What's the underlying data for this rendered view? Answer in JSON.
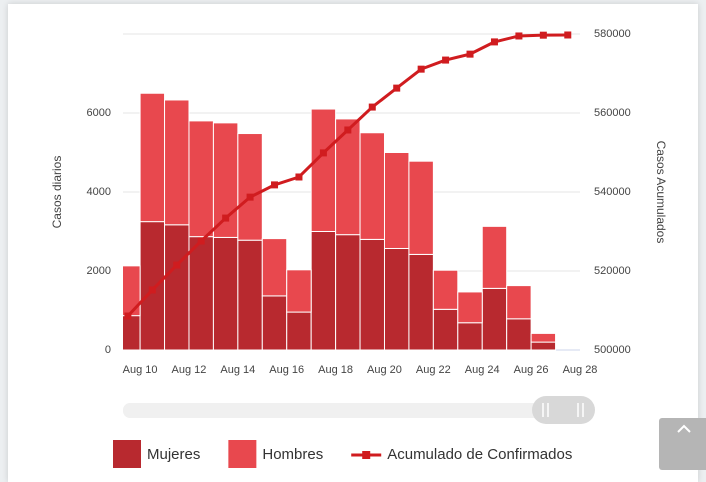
{
  "chart_data": {
    "type": "bar",
    "stacked": true,
    "ylabel": "Casos diarios",
    "y2label": "Casos Acumulados",
    "x": [
      9,
      10,
      11,
      12,
      13,
      14,
      15,
      16,
      17,
      18,
      19,
      20,
      21,
      22,
      23,
      24,
      25,
      26,
      27
    ],
    "xlim": [
      9.3,
      28
    ],
    "xticks": [
      {
        "value": 10,
        "label": "Aug 10"
      },
      {
        "value": 12,
        "label": "Aug 12"
      },
      {
        "value": 14,
        "label": "Aug 14"
      },
      {
        "value": 16,
        "label": "Aug 16"
      },
      {
        "value": 18,
        "label": "Aug 18"
      },
      {
        "value": 20,
        "label": "Aug 20"
      },
      {
        "value": 22,
        "label": "Aug 22"
      },
      {
        "value": 24,
        "label": "Aug 24"
      },
      {
        "value": 26,
        "label": "Aug 26"
      },
      {
        "value": 28,
        "label": "Aug 28"
      }
    ],
    "ylim": [
      0,
      8000
    ],
    "yticks": [
      0,
      2000,
      4000,
      6000
    ],
    "y2lim": [
      500000,
      580000
    ],
    "y2ticks": [
      500000,
      520000,
      540000,
      560000,
      580000
    ],
    "grid": true,
    "series": [
      {
        "name": "Mujeres",
        "type": "bar",
        "color": "#b8292f",
        "values": [
          870,
          3250,
          3170,
          2870,
          2850,
          2780,
          1370,
          960,
          3000,
          2920,
          2800,
          2570,
          2420,
          1030,
          690,
          1560,
          790,
          200,
          null
        ]
      },
      {
        "name": "Hombres",
        "type": "bar",
        "color": "#e8484e",
        "values": [
          1260,
          3250,
          3160,
          2930,
          2900,
          2700,
          1450,
          1070,
          3100,
          2930,
          2700,
          2430,
          2360,
          990,
          780,
          1570,
          840,
          220,
          null
        ]
      },
      {
        "name": "Acumulado de Confirmados",
        "type": "line",
        "axis": "y2",
        "color": "#d01c1f",
        "values": [
          508600,
          515200,
          521500,
          527600,
          533400,
          538700,
          541800,
          543800,
          549900,
          555700,
          561500,
          566300,
          571100,
          573400,
          574900,
          578000,
          579500,
          579700,
          579750
        ]
      }
    ]
  }
}
